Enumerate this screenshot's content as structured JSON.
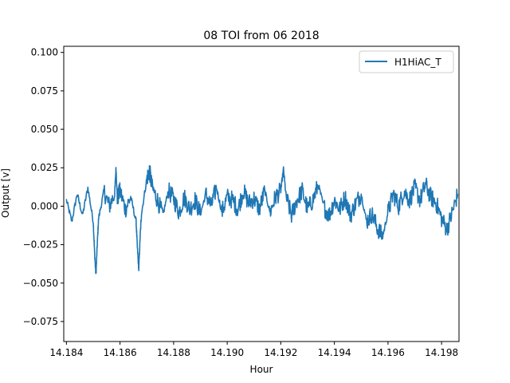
{
  "chart_data": {
    "type": "line",
    "title": "08 TOI from 06 2018",
    "xlabel": "Hour",
    "ylabel": "Output [v]",
    "xlim": [
      14.1839,
      14.19865
    ],
    "ylim": [
      -0.088,
      0.104
    ],
    "x_ticks": [
      14.184,
      14.186,
      14.188,
      14.19,
      14.192,
      14.194,
      14.196,
      14.198
    ],
    "x_tick_labels": [
      "14.184",
      "14.186",
      "14.188",
      "14.190",
      "14.192",
      "14.194",
      "14.196",
      "14.198"
    ],
    "y_ticks": [
      -0.075,
      -0.05,
      -0.025,
      0.0,
      0.025,
      0.05,
      0.075,
      0.1
    ],
    "y_tick_labels": [
      "−0.075",
      "−0.050",
      "−0.025",
      "0.000",
      "0.025",
      "0.050",
      "0.075",
      "0.100"
    ],
    "grid": false,
    "legend": {
      "position": "top-right"
    },
    "series": [
      {
        "name": "H1HiAC_T",
        "color": "#1f77b4",
        "x": [
          14.184,
          14.1842,
          14.1844,
          14.1846,
          14.1848,
          14.185,
          14.18505,
          14.1851,
          14.18515,
          14.1852,
          14.1854,
          14.1856,
          14.1858,
          14.18585,
          14.1859,
          14.186,
          14.1862,
          14.1864,
          14.1866,
          14.18665,
          14.1867,
          14.18675,
          14.1868,
          14.187,
          14.1871,
          14.1872,
          14.1874,
          14.1876,
          14.1878,
          14.188,
          14.1882,
          14.1884,
          14.1886,
          14.1888,
          14.189,
          14.1892,
          14.1894,
          14.1896,
          14.1898,
          14.19,
          14.1902,
          14.1904,
          14.1906,
          14.1908,
          14.191,
          14.1912,
          14.1914,
          14.1916,
          14.1918,
          14.192,
          14.1921,
          14.1922,
          14.1924,
          14.1926,
          14.1928,
          14.193,
          14.1932,
          14.1934,
          14.1936,
          14.1938,
          14.194,
          14.1942,
          14.1944,
          14.1946,
          14.1948,
          14.195,
          14.1952,
          14.1954,
          14.1956,
          14.1958,
          14.196,
          14.1962,
          14.1964,
          14.1966,
          14.1968,
          14.197,
          14.1972,
          14.1974,
          14.1976,
          14.1978,
          14.198,
          14.1982,
          14.1984,
          14.1986
        ],
        "y": [
          0.004,
          -0.01,
          0.008,
          -0.006,
          0.012,
          -0.01,
          -0.03,
          -0.045,
          -0.025,
          -0.008,
          0.01,
          0.0,
          0.008,
          0.025,
          0.005,
          0.01,
          -0.002,
          0.006,
          -0.01,
          -0.028,
          -0.041,
          -0.02,
          -0.005,
          0.018,
          0.023,
          0.012,
          0.004,
          -0.006,
          0.01,
          0.005,
          -0.004,
          0.006,
          -0.002,
          0.004,
          -0.005,
          0.008,
          0.0,
          0.012,
          -0.004,
          0.006,
          0.004,
          -0.002,
          0.01,
          0.002,
          0.005,
          -0.002,
          0.01,
          -0.004,
          0.006,
          0.01,
          0.024,
          0.006,
          -0.006,
          0.004,
          0.01,
          -0.002,
          0.004,
          0.014,
          0.0,
          -0.006,
          0.004,
          -0.002,
          0.006,
          -0.006,
          0.002,
          0.008,
          -0.01,
          -0.005,
          -0.014,
          -0.02,
          -0.004,
          0.008,
          0.0,
          0.01,
          0.004,
          0.012,
          0.004,
          0.014,
          0.006,
          0.002,
          -0.008,
          -0.015,
          -0.004,
          0.008
        ]
      }
    ]
  }
}
